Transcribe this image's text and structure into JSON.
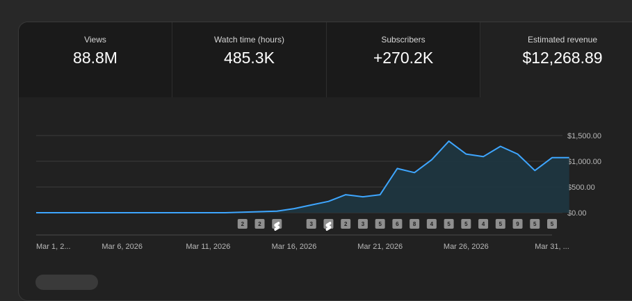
{
  "metrics": [
    {
      "label": "Views",
      "value": "88.8M"
    },
    {
      "label": "Watch time (hours)",
      "value": "485.3K"
    },
    {
      "label": "Subscribers",
      "value": "+270.2K"
    },
    {
      "label": "Estimated revenue",
      "value": "$12,268.89"
    }
  ],
  "colors": {
    "line": "#3ea6ff",
    "area": "#1f3640",
    "marker": "#8f8f8f",
    "grid": "#3a3a3a"
  },
  "chart_data": {
    "type": "area",
    "title": "",
    "xlabel": "",
    "ylabel": "",
    "ylim": [
      0,
      1500
    ],
    "yticks": [
      "$1,500.00",
      "$1,000.00",
      "$500.00",
      "$0.00"
    ],
    "ytick_values": [
      1500,
      1000,
      500,
      0
    ],
    "xticks": [
      "Mar 1, 2...",
      "Mar 6, 2026",
      "Mar 11, 2026",
      "Mar 16, 2026",
      "Mar 21, 2026",
      "Mar 26, 2026",
      "Mar 31, ..."
    ],
    "xtick_days": [
      1,
      6,
      11,
      16,
      21,
      26,
      31
    ],
    "series": [
      {
        "x": [
          1,
          2,
          3,
          4,
          5,
          6,
          7,
          8,
          9,
          10,
          11,
          12,
          13,
          14,
          15,
          16,
          17,
          18,
          19,
          20,
          21,
          22,
          23,
          24,
          25,
          26,
          27,
          28,
          29,
          30,
          31,
          32
        ],
        "values": [
          0,
          0,
          0,
          0,
          0,
          0,
          0,
          0,
          0,
          0,
          0,
          0,
          10,
          20,
          30,
          80,
          150,
          220,
          350,
          310,
          350,
          860,
          780,
          1030,
          1390,
          1140,
          1090,
          1290,
          1140,
          820,
          1070,
          1070
        ]
      }
    ],
    "markers": [
      {
        "day": 13,
        "label": "2"
      },
      {
        "day": 14,
        "label": "2"
      },
      {
        "day": 15,
        "label": "shorts-icon"
      },
      {
        "day": 17,
        "label": "3"
      },
      {
        "day": 18,
        "label": "shorts-icon"
      },
      {
        "day": 19,
        "label": "2"
      },
      {
        "day": 20,
        "label": "3"
      },
      {
        "day": 21,
        "label": "5"
      },
      {
        "day": 22,
        "label": "6"
      },
      {
        "day": 23,
        "label": "8"
      },
      {
        "day": 24,
        "label": "4"
      },
      {
        "day": 25,
        "label": "5"
      },
      {
        "day": 26,
        "label": "5"
      },
      {
        "day": 27,
        "label": "4"
      },
      {
        "day": 28,
        "label": "5"
      },
      {
        "day": 29,
        "label": "9"
      },
      {
        "day": 30,
        "label": "5"
      },
      {
        "day": 31,
        "label": "5"
      }
    ]
  }
}
